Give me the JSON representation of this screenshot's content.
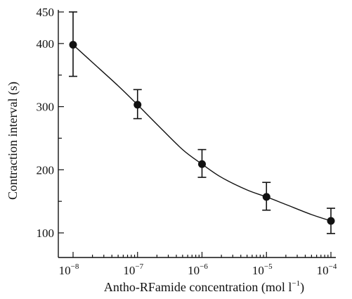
{
  "chart_data": {
    "type": "scatter",
    "title": "",
    "xlabel": "Antho-RFamide concentration (mol l",
    "xlabel_exp": "−1",
    "xlabel_close": ")",
    "ylabel": "Contraction interval (s)",
    "x_scale": "log",
    "x_ticks": [
      {
        "value": 1e-08,
        "base": "10",
        "exp": "−8"
      },
      {
        "value": 1e-07,
        "base": "10",
        "exp": "−7"
      },
      {
        "value": 1e-06,
        "base": "10",
        "exp": "−6"
      },
      {
        "value": 1e-05,
        "base": "10",
        "exp": "−5"
      },
      {
        "value": 0.0001,
        "base": "10",
        "exp": "−4"
      }
    ],
    "y_ticks": [
      100,
      200,
      300,
      400,
      450
    ],
    "ylim": [
      90,
      450
    ],
    "xlim": [
      1e-08,
      0.0001
    ],
    "grid": false,
    "points": [
      {
        "x": 1e-08,
        "y": 398,
        "err_low": 348,
        "err_high": 450
      },
      {
        "x": 1e-07,
        "y": 303,
        "err_low": 281,
        "err_high": 327
      },
      {
        "x": 1e-06,
        "y": 209,
        "err_low": 188,
        "err_high": 232
      },
      {
        "x": 1e-05,
        "y": 157,
        "err_low": 136,
        "err_high": 180
      },
      {
        "x": 0.0001,
        "y": 119,
        "err_low": 99,
        "err_high": 139
      }
    ],
    "fit_curve": [
      [
        1e-08,
        398
      ],
      [
        2e-08,
        370
      ],
      [
        5e-08,
        333
      ],
      [
        1e-07,
        303
      ],
      [
        2e-07,
        272
      ],
      [
        5e-07,
        232
      ],
      [
        1e-06,
        209
      ],
      [
        2e-06,
        188
      ],
      [
        5e-06,
        168
      ],
      [
        1e-05,
        157
      ],
      [
        2e-05,
        145
      ],
      [
        5e-05,
        129
      ],
      [
        0.0001,
        119
      ]
    ],
    "color": "#111111"
  }
}
